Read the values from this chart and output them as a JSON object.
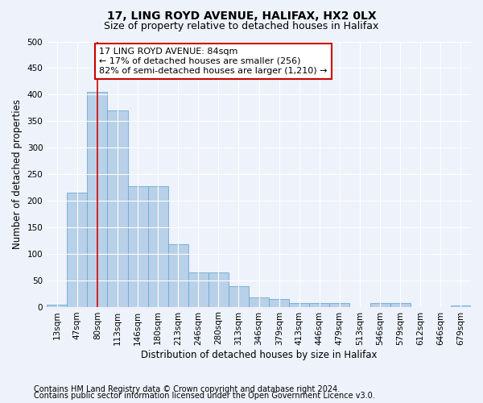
{
  "title1": "17, LING ROYD AVENUE, HALIFAX, HX2 0LX",
  "title2": "Size of property relative to detached houses in Halifax",
  "xlabel": "Distribution of detached houses by size in Halifax",
  "ylabel": "Number of detached properties",
  "categories": [
    "13sqm",
    "47sqm",
    "80sqm",
    "113sqm",
    "146sqm",
    "180sqm",
    "213sqm",
    "246sqm",
    "280sqm",
    "313sqm",
    "346sqm",
    "379sqm",
    "413sqm",
    "446sqm",
    "479sqm",
    "513sqm",
    "546sqm",
    "579sqm",
    "612sqm",
    "646sqm",
    "679sqm"
  ],
  "values": [
    4,
    215,
    405,
    370,
    228,
    228,
    118,
    65,
    65,
    39,
    18,
    14,
    7,
    7,
    7,
    0,
    7,
    7,
    0,
    0,
    3
  ],
  "bar_color": "#b8d0e8",
  "bar_edge_color": "#6aaad4",
  "vline_index": 2,
  "annotation_text": "17 LING ROYD AVENUE: 84sqm\n← 17% of detached houses are smaller (256)\n82% of semi-detached houses are larger (1,210) →",
  "annotation_box_color": "#ffffff",
  "annotation_box_edgecolor": "#cc0000",
  "vline_color": "#cc0000",
  "ylim": [
    0,
    500
  ],
  "yticks": [
    0,
    50,
    100,
    150,
    200,
    250,
    300,
    350,
    400,
    450,
    500
  ],
  "footnote1": "Contains HM Land Registry data © Crown copyright and database right 2024.",
  "footnote2": "Contains public sector information licensed under the Open Government Licence v3.0.",
  "background_color": "#eef2fb",
  "grid_color": "#ffffff",
  "title1_fontsize": 10,
  "title2_fontsize": 9,
  "axis_label_fontsize": 8.5,
  "tick_fontsize": 7.5,
  "annotation_fontsize": 8,
  "footnote_fontsize": 7
}
